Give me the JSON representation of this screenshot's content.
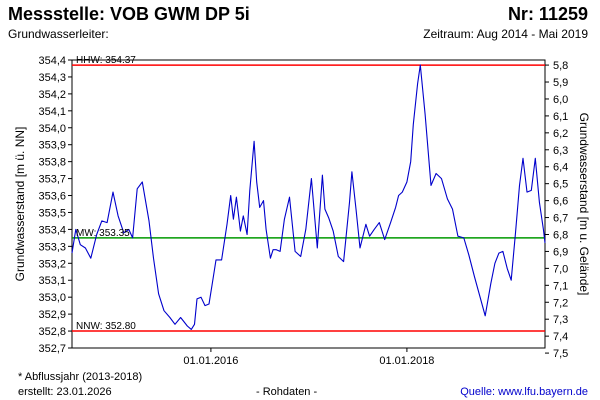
{
  "header": {
    "title": "Messstelle: VOB GWM DP 5i",
    "number": "Nr: 11259",
    "aquifer": "Grundwasserleiter:",
    "period": "Zeitraum: Aug 2014 - Mai 2019"
  },
  "footer": {
    "note": "* Abflussjahr (2013-2018)",
    "created": "erstellt:  23.01.2026",
    "raw": "- Rohdaten -",
    "source": "Quelle:  www.lfu.bayern.de"
  },
  "colors": {
    "series": "#0000cc",
    "hhw": "#ff0000",
    "nnw": "#ff0000",
    "mw": "#009900"
  },
  "chart_data": {
    "type": "line",
    "ylabel": "Grundwasserstand [m ü. NN]",
    "y2label": "Grundwasserstand [m u. Gelände]",
    "ylim": [
      352.7,
      354.4
    ],
    "y_ticks": [
      "352,7",
      "352,8",
      "352,9",
      "353,0",
      "353,1",
      "353,2",
      "353,3",
      "353,4",
      "353,5",
      "353,6",
      "353,7",
      "353,8",
      "353,9",
      "354,0",
      "354,1",
      "354,2",
      "354,3",
      "354,4"
    ],
    "y2_ticks": [
      "5,8",
      "5,9",
      "6,0",
      "6,1",
      "6,2",
      "6,3",
      "6,4",
      "6,5",
      "6,6",
      "6,7",
      "6,8",
      "6,9",
      "7,0",
      "7,1",
      "7,2",
      "7,3",
      "7,4",
      "7,5"
    ],
    "y2_ticks_at": [
      354.37,
      354.27,
      354.17,
      354.07,
      353.97,
      353.87,
      353.77,
      353.67,
      353.57,
      353.47,
      353.37,
      353.27,
      353.17,
      353.07,
      352.97,
      352.87,
      352.77,
      352.67
    ],
    "xlim": [
      "2014-08-01",
      "2019-05-31"
    ],
    "x_ticks": [
      {
        "label": "01.01.2016",
        "date": "2016-01-01"
      },
      {
        "label": "01.01.2018",
        "date": "2018-01-01"
      }
    ],
    "reference_lines": [
      {
        "key": "hhw",
        "label": "HHW: 354.37",
        "value": 354.37
      },
      {
        "key": "mw",
        "label": "MW: 353.35",
        "value": 353.35
      },
      {
        "key": "nnw",
        "label": "NNW: 352.80",
        "value": 352.8
      }
    ],
    "series": [
      {
        "x": [
          "2014-08-01",
          "2014-08-15",
          "2014-09-01",
          "2014-09-20",
          "2014-10-10",
          "2014-11-01",
          "2014-11-20",
          "2014-12-10",
          "2015-01-01",
          "2015-01-20",
          "2015-02-10",
          "2015-03-01",
          "2015-03-15",
          "2015-04-01",
          "2015-04-20",
          "2015-05-01",
          "2015-05-15",
          "2015-06-01",
          "2015-06-20",
          "2015-07-10",
          "2015-08-01",
          "2015-08-20",
          "2015-09-10",
          "2015-09-20",
          "2015-10-05",
          "2015-10-20",
          "2015-11-01",
          "2015-11-10",
          "2015-11-25",
          "2015-12-10",
          "2015-12-25",
          "2016-01-05",
          "2016-01-20",
          "2016-02-10",
          "2016-03-01",
          "2016-03-15",
          "2016-03-25",
          "2016-04-05",
          "2016-04-20",
          "2016-05-01",
          "2016-05-15",
          "2016-05-25",
          "2016-06-10",
          "2016-06-20",
          "2016-07-01",
          "2016-07-15",
          "2016-07-25",
          "2016-08-10",
          "2016-08-20",
          "2016-09-01",
          "2016-09-15",
          "2016-10-01",
          "2016-10-20",
          "2016-11-10",
          "2016-12-01",
          "2016-12-20",
          "2017-01-10",
          "2017-02-01",
          "2017-02-20",
          "2017-03-01",
          "2017-03-15",
          "2017-04-01",
          "2017-04-20",
          "2017-05-10",
          "2017-06-01",
          "2017-06-10",
          "2017-06-25",
          "2017-07-10",
          "2017-08-01",
          "2017-08-15",
          "2017-09-01",
          "2017-09-20",
          "2017-10-10",
          "2017-11-01",
          "2017-11-20",
          "2017-12-01",
          "2017-12-15",
          "2018-01-01",
          "2018-01-15",
          "2018-01-25",
          "2018-02-10",
          "2018-02-20",
          "2018-03-10",
          "2018-04-01",
          "2018-04-20",
          "2018-05-10",
          "2018-06-01",
          "2018-06-20",
          "2018-07-10",
          "2018-08-01",
          "2018-08-20",
          "2018-09-10",
          "2018-10-01",
          "2018-10-20",
          "2018-11-10",
          "2018-11-25",
          "2018-12-10",
          "2018-12-25",
          "2019-01-10",
          "2019-01-25",
          "2019-02-10",
          "2019-02-25",
          "2019-03-10",
          "2019-03-25",
          "2019-04-10",
          "2019-04-25",
          "2019-05-10",
          "2019-05-25",
          "2019-05-31"
        ],
        "y": [
          353.26,
          353.4,
          353.31,
          353.29,
          353.23,
          353.37,
          353.45,
          353.44,
          353.62,
          353.48,
          353.38,
          353.4,
          353.35,
          353.64,
          353.68,
          353.58,
          353.45,
          353.23,
          353.02,
          352.92,
          352.88,
          352.84,
          352.88,
          352.86,
          352.83,
          352.81,
          352.84,
          352.99,
          353.0,
          352.95,
          352.96,
          353.07,
          353.22,
          353.22,
          353.43,
          353.6,
          353.46,
          353.59,
          353.39,
          353.48,
          353.37,
          353.63,
          353.92,
          353.68,
          353.53,
          353.57,
          353.4,
          353.23,
          353.28,
          353.28,
          353.27,
          353.46,
          353.59,
          353.27,
          353.24,
          353.4,
          353.7,
          353.29,
          353.72,
          353.52,
          353.47,
          353.39,
          353.24,
          353.21,
          353.56,
          353.74,
          353.52,
          353.29,
          353.43,
          353.36,
          353.4,
          353.44,
          353.34,
          353.44,
          353.53,
          353.6,
          353.62,
          353.68,
          353.8,
          354.02,
          354.26,
          354.37,
          354.08,
          353.66,
          353.73,
          353.7,
          353.58,
          353.52,
          353.36,
          353.35,
          353.25,
          353.12,
          353.0,
          352.89,
          353.08,
          353.2,
          353.26,
          353.27,
          353.17,
          353.1,
          353.38,
          353.66,
          353.82,
          353.62,
          353.63,
          353.82,
          353.56,
          353.4,
          353.32
        ]
      }
    ]
  }
}
